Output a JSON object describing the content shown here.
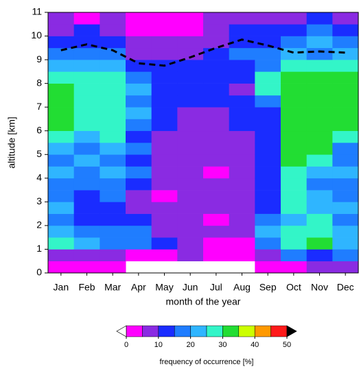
{
  "chart_data": {
    "type": "heatmap",
    "xlabel": "month of the year",
    "ylabel": "altitude [km]",
    "categories": [
      "Jan",
      "Feb",
      "Mar",
      "Apr",
      "May",
      "Jun",
      "Jul",
      "Aug",
      "Sep",
      "Oct",
      "Nov",
      "Dec"
    ],
    "ylim": [
      0,
      11
    ],
    "yticks": [
      0,
      1,
      2,
      3,
      4,
      5,
      6,
      7,
      8,
      9,
      10,
      11
    ],
    "y_edges": [
      0,
      0.5,
      1,
      1.5,
      2,
      2.5,
      3,
      3.5,
      4,
      4.5,
      5,
      5.5,
      6,
      6.5,
      7,
      7.5,
      8,
      8.5,
      9,
      9.5,
      10,
      10.5,
      11
    ],
    "z": [
      [
        3,
        8,
        28,
        23,
        18,
        23,
        18,
        18,
        23,
        18,
        23,
        28,
        33,
        33,
        33,
        33,
        28,
        23,
        18,
        13,
        8,
        8
      ],
      [
        3,
        8,
        23,
        18,
        13,
        13,
        13,
        18,
        18,
        23,
        18,
        23,
        28,
        28,
        28,
        28,
        28,
        23,
        18,
        13,
        13,
        3
      ],
      [
        3,
        8,
        18,
        18,
        13,
        13,
        18,
        18,
        23,
        18,
        23,
        28,
        28,
        28,
        28,
        28,
        28,
        23,
        18,
        13,
        8,
        8
      ],
      [
        null,
        3,
        18,
        18,
        13,
        8,
        8,
        13,
        18,
        13,
        18,
        13,
        18,
        23,
        18,
        23,
        18,
        13,
        8,
        8,
        3,
        3
      ],
      [
        null,
        3,
        13,
        8,
        8,
        8,
        3,
        8,
        8,
        8,
        8,
        8,
        13,
        13,
        13,
        13,
        13,
        13,
        8,
        8,
        3,
        3
      ],
      [
        null,
        8,
        8,
        8,
        8,
        8,
        8,
        8,
        8,
        8,
        8,
        8,
        8,
        8,
        13,
        13,
        13,
        13,
        8,
        8,
        3,
        3
      ],
      [
        null,
        3,
        3,
        8,
        3,
        8,
        8,
        8,
        3,
        8,
        8,
        8,
        8,
        8,
        13,
        13,
        13,
        13,
        13,
        8,
        8,
        8
      ],
      [
        null,
        3,
        3,
        8,
        8,
        8,
        8,
        8,
        8,
        8,
        8,
        8,
        13,
        13,
        13,
        8,
        13,
        13,
        18,
        13,
        13,
        8
      ],
      [
        3,
        8,
        18,
        23,
        18,
        13,
        13,
        13,
        13,
        13,
        13,
        13,
        13,
        13,
        18,
        28,
        28,
        18,
        18,
        13,
        13,
        8
      ],
      [
        3,
        18,
        28,
        28,
        23,
        28,
        28,
        28,
        28,
        33,
        33,
        33,
        33,
        33,
        33,
        33,
        33,
        28,
        23,
        18,
        13,
        8
      ],
      [
        8,
        13,
        33,
        28,
        28,
        23,
        23,
        18,
        23,
        28,
        33,
        33,
        33,
        33,
        33,
        33,
        33,
        28,
        18,
        23,
        18,
        13
      ],
      [
        8,
        18,
        23,
        23,
        18,
        23,
        18,
        18,
        23,
        18,
        18,
        28,
        33,
        33,
        33,
        33,
        33,
        28,
        23,
        18,
        13,
        8
      ]
    ],
    "line": {
      "color": "#000000",
      "values": [
        9.4,
        9.65,
        9.4,
        8.85,
        8.75,
        9.1,
        9.5,
        9.85,
        9.6,
        9.3,
        9.35,
        9.3
      ]
    },
    "colorbar": {
      "label": "frequency of occurrence [%]",
      "levels": [
        0,
        5,
        10,
        15,
        20,
        25,
        30,
        35,
        40,
        45,
        50
      ],
      "colors": [
        "#ff00ff",
        "#8a2be2",
        "#1a2cff",
        "#1f7dff",
        "#2fb5ff",
        "#33f5c8",
        "#22dd33",
        "#ccff00",
        "#ff9900",
        "#ff1a1a"
      ],
      "under_color": "#ffffff",
      "over_color": "#000000",
      "ticks": [
        0,
        10,
        20,
        30,
        40,
        50
      ]
    }
  }
}
